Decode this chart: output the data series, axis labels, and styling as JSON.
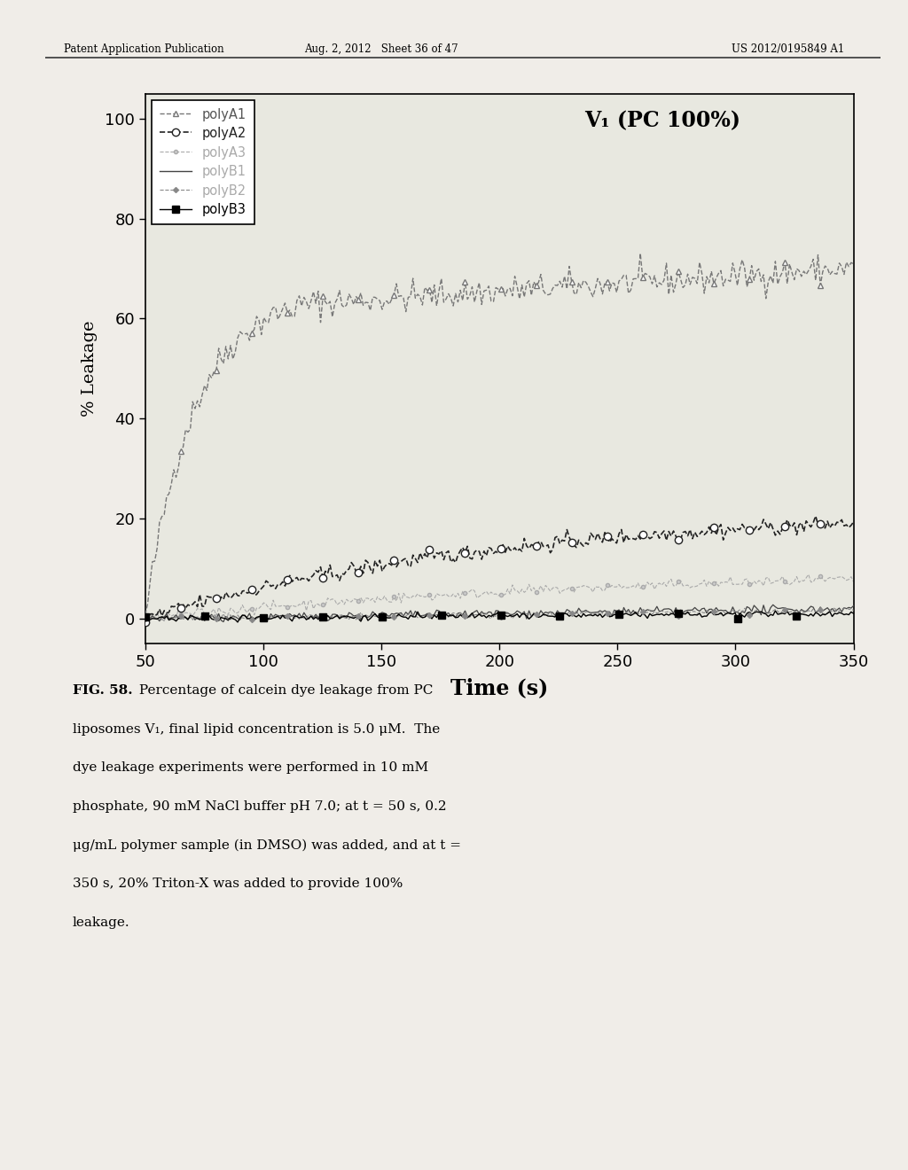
{
  "title": "V₁ (PC 100%)",
  "xlabel": "Time (s)",
  "ylabel": "% Leakage",
  "xlim": [
    50,
    350
  ],
  "ylim": [
    -5,
    105
  ],
  "xticks": [
    50,
    100,
    150,
    200,
    250,
    300,
    350
  ],
  "yticks": [
    0,
    20,
    40,
    60,
    80,
    100
  ],
  "header_left": "Patent Application Publication",
  "header_center": "Aug. 2, 2012   Sheet 36 of 47",
  "header_right": "US 2012/0195849 A1",
  "caption_bold": "FIG. 58.",
  "caption_normal": " Percentage of calcein dye leakage from PC liposomes V₁, final lipid concentration is 5.0 μM.  The dye leakage experiments were performed in 10 mM phosphate, 90 mM NaCl buffer pH 7.0; at t = 50 s, 0.2 μg/mL polymer sample (in DMSO) was added, and at t = 350 s, 20% Triton-X was added to provide 100% leakage.",
  "plot_bg": "#e8e8e0",
  "fig_bg": "#f0ede8"
}
